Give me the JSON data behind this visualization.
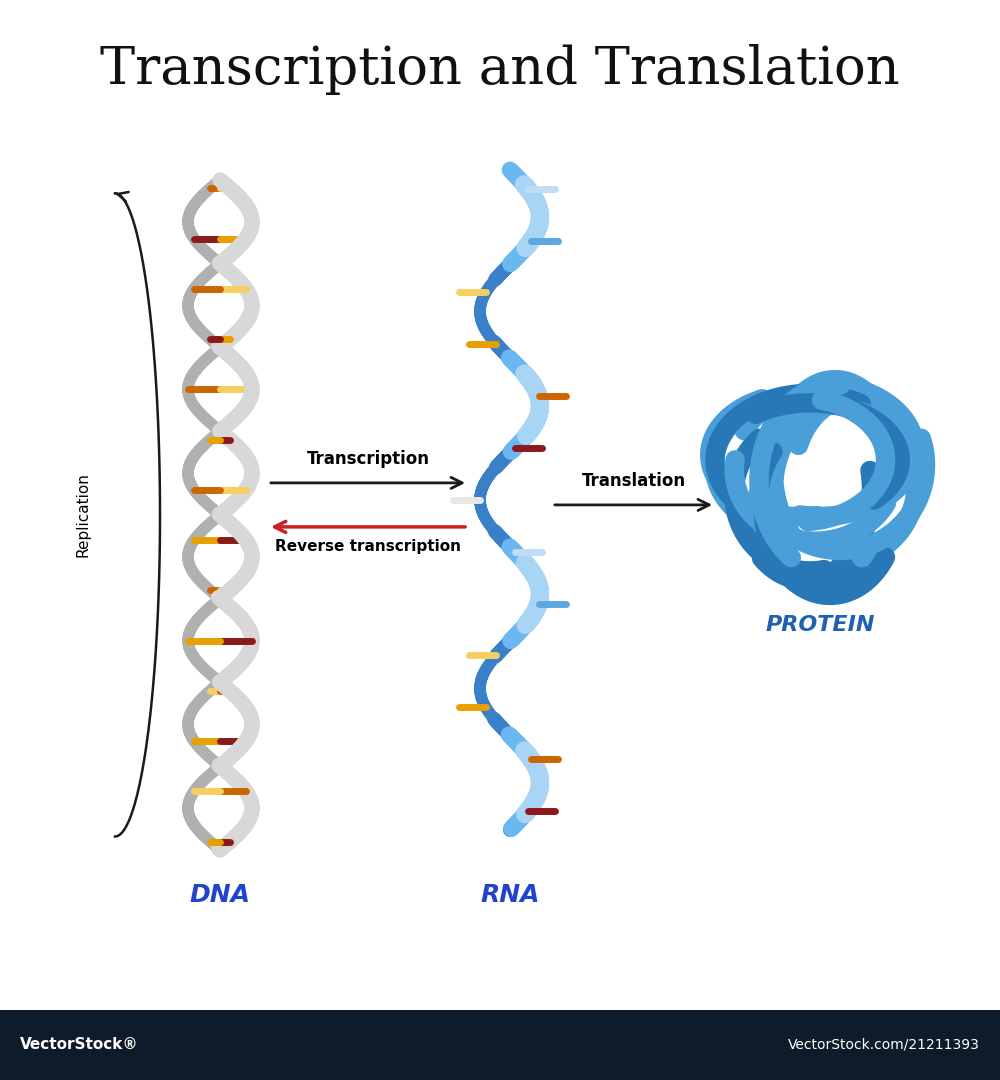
{
  "title": "Transcription and Translation",
  "title_fontsize": 38,
  "background_color": "#ffffff",
  "dna_label": "DNA",
  "rna_label": "RNA",
  "protein_label": "PROTEIN",
  "replication_label": "Replication",
  "transcription_label": "Transcription",
  "reverse_transcription_label": "Reverse transcription",
  "translation_label": "Translation",
  "dna_color1": "#d8d8d8",
  "dna_color2": "#b0b0b0",
  "dna_shadow": "#909090",
  "rna_color1": "#6bb8f0",
  "rna_color2": "#3a80c8",
  "rna_color_light": "#a8d4f5",
  "base_red": "#8b1a1a",
  "base_orange": "#cc6600",
  "base_yellow": "#e8a000",
  "base_lightyellow": "#f5d060",
  "base_blue": "#5ba8e0",
  "base_lightblue": "#c0ddf5",
  "base_white": "#e8e8e8",
  "protein_color": "#4a9fd9",
  "protein_color_dark": "#2878b8",
  "label_color_dna": "#2244cc",
  "label_color_rna": "#2244cc",
  "label_color_protein": "#2060b0",
  "footer_bg": "#0d1b2a",
  "footer_text1": "VectorStock®",
  "footer_text2": "VectorStock.com/21211393",
  "arrow_color_black": "#1a1a1a",
  "arrow_color_red": "#cc2020"
}
